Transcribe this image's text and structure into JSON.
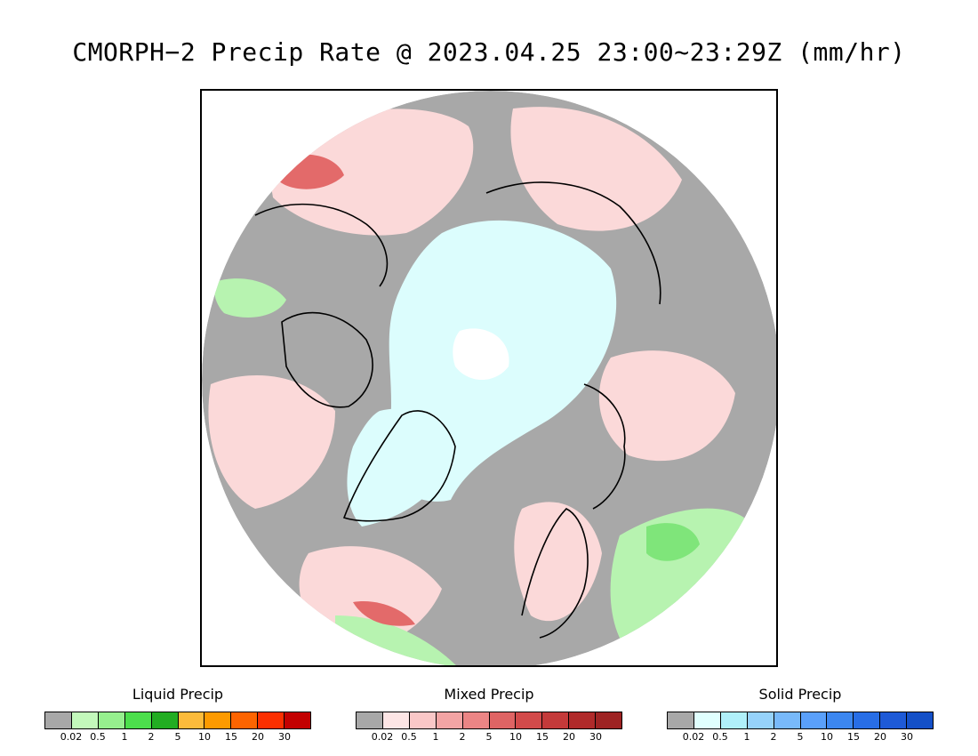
{
  "title": "CMORPH−2 Precip Rate @ 2023.04.25 23:00~23:29Z (mm/hr)",
  "map": {
    "projection": "north-polar-stereographic",
    "colors": {
      "no_precip": "#a8a8a8",
      "mixed_light": "#fbd9d9",
      "solid_light": "#dcfdfd",
      "solid_core": "#ffffff",
      "liquid_light": "#b7f3b0",
      "liquid_mid": "#7fe57a",
      "mixed_mid": "#f6b4b4",
      "mixed_strong": "#e36a6a",
      "coastline": "#000000"
    }
  },
  "legends": [
    {
      "title": "Liquid Precip",
      "colors": [
        "#a8a8a8",
        "#c3f9bb",
        "#96ef8e",
        "#4cdf4c",
        "#22ad22",
        "#fcbb3b",
        "#fd9a00",
        "#fd6400",
        "#fb2f00",
        "#c30000"
      ],
      "tick_labels": [
        "0.02",
        "0.5",
        "1",
        "2",
        "5",
        "10",
        "15",
        "20",
        "30"
      ]
    },
    {
      "title": "Mixed Precip",
      "colors": [
        "#a8a8a8",
        "#fde5e5",
        "#fac7c7",
        "#f3a4a4",
        "#eb8585",
        "#df6464",
        "#d24a4a",
        "#c43a3a",
        "#b02a2a",
        "#9e2323"
      ],
      "tick_labels": [
        "0.02",
        "0.5",
        "1",
        "2",
        "5",
        "10",
        "15",
        "20",
        "30"
      ]
    },
    {
      "title": "Solid Precip",
      "colors": [
        "#a8a8a8",
        "#e0fffe",
        "#b0f0fa",
        "#96d2fa",
        "#78b9fa",
        "#5aa0fa",
        "#3c87f0",
        "#286ee6",
        "#1e5ad7",
        "#1450c8"
      ],
      "tick_labels": [
        "0.02",
        "0.5",
        "1",
        "2",
        "5",
        "10",
        "15",
        "20",
        "30"
      ]
    }
  ]
}
